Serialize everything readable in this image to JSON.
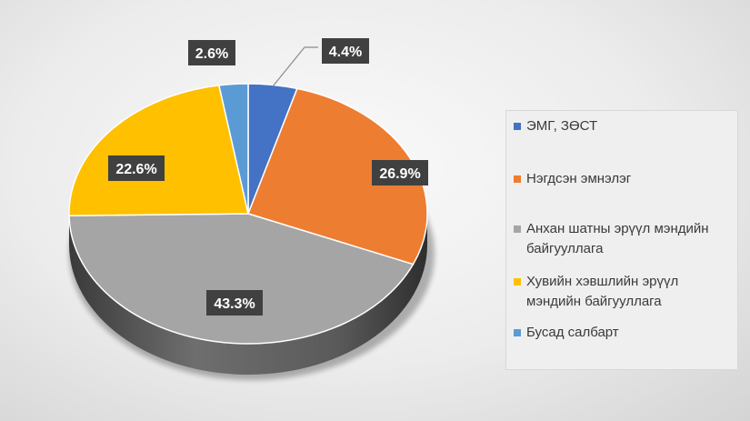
{
  "chart_data": {
    "type": "pie",
    "title": "",
    "slices": [
      {
        "label": "ЭМГ, ЗӨСТ",
        "value": 4.4,
        "display": "4.4%",
        "color": "#4472C4"
      },
      {
        "label": "Нэгдсэн эмнэлэг",
        "value": 26.9,
        "display": "26.9%",
        "color": "#ED7D31"
      },
      {
        "label": "Анхан шатны эрүүл мэндийн байгууллага",
        "value": 43.3,
        "display": "43.3%",
        "color": "#A5A5A5"
      },
      {
        "label": "Хувийн хэвшлийн эрүүл мэндийн байгууллага",
        "value": 22.6,
        "display": "22.6%",
        "color": "#FFC000"
      },
      {
        "label": "Бусад салбарт",
        "value": 2.6,
        "display": "2.6%",
        "color": "#5B9BD5"
      }
    ],
    "legend_position": "right"
  }
}
